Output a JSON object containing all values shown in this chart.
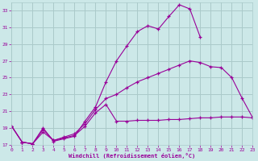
{
  "xlabel": "Windchill (Refroidissement éolien,°C)",
  "bg_color": "#cce8e8",
  "grid_color": "#aacaca",
  "line_color": "#990099",
  "xmin": 0,
  "xmax": 23,
  "ymin": 17,
  "ymax": 34,
  "yticks": [
    17,
    19,
    21,
    23,
    25,
    27,
    29,
    31,
    33
  ],
  "xticks": [
    0,
    1,
    2,
    3,
    4,
    5,
    6,
    7,
    8,
    9,
    10,
    11,
    12,
    13,
    14,
    15,
    16,
    17,
    18,
    19,
    20,
    21,
    22,
    23
  ],
  "s1_x": [
    0,
    1,
    2,
    3,
    4,
    5,
    6,
    7,
    8,
    9,
    10,
    11,
    12,
    13,
    14,
    15,
    16,
    17,
    18
  ],
  "s1_y": [
    19.2,
    17.3,
    17.1,
    19.0,
    17.4,
    17.7,
    18.0,
    19.8,
    21.5,
    24.5,
    27.0,
    28.8,
    30.5,
    31.2,
    30.8,
    32.3,
    33.7,
    33.2,
    29.8
  ],
  "s2_x": [
    0,
    1,
    2,
    3,
    4,
    5,
    6,
    7,
    8,
    9,
    10,
    11,
    12,
    13,
    14,
    15,
    16,
    17,
    18,
    19,
    20,
    21,
    22,
    23
  ],
  "s2_y": [
    19.2,
    17.3,
    17.1,
    18.8,
    17.5,
    17.9,
    18.3,
    19.5,
    21.2,
    22.5,
    23.0,
    23.8,
    24.5,
    25.0,
    25.5,
    26.0,
    26.5,
    27.0,
    26.8,
    26.3,
    26.2,
    25.0,
    22.5,
    20.2
  ],
  "s3_x": [
    0,
    1,
    2,
    3,
    4,
    5,
    6,
    7,
    8,
    9,
    10,
    11,
    12,
    13,
    14,
    15,
    16,
    17,
    18,
    19,
    20,
    21,
    22,
    23
  ],
  "s3_y": [
    19.2,
    17.3,
    17.1,
    18.5,
    17.5,
    17.8,
    18.1,
    19.2,
    20.8,
    21.8,
    19.8,
    19.8,
    19.9,
    19.9,
    19.9,
    20.0,
    20.0,
    20.1,
    20.2,
    20.2,
    20.3,
    20.3,
    20.3,
    20.2
  ]
}
